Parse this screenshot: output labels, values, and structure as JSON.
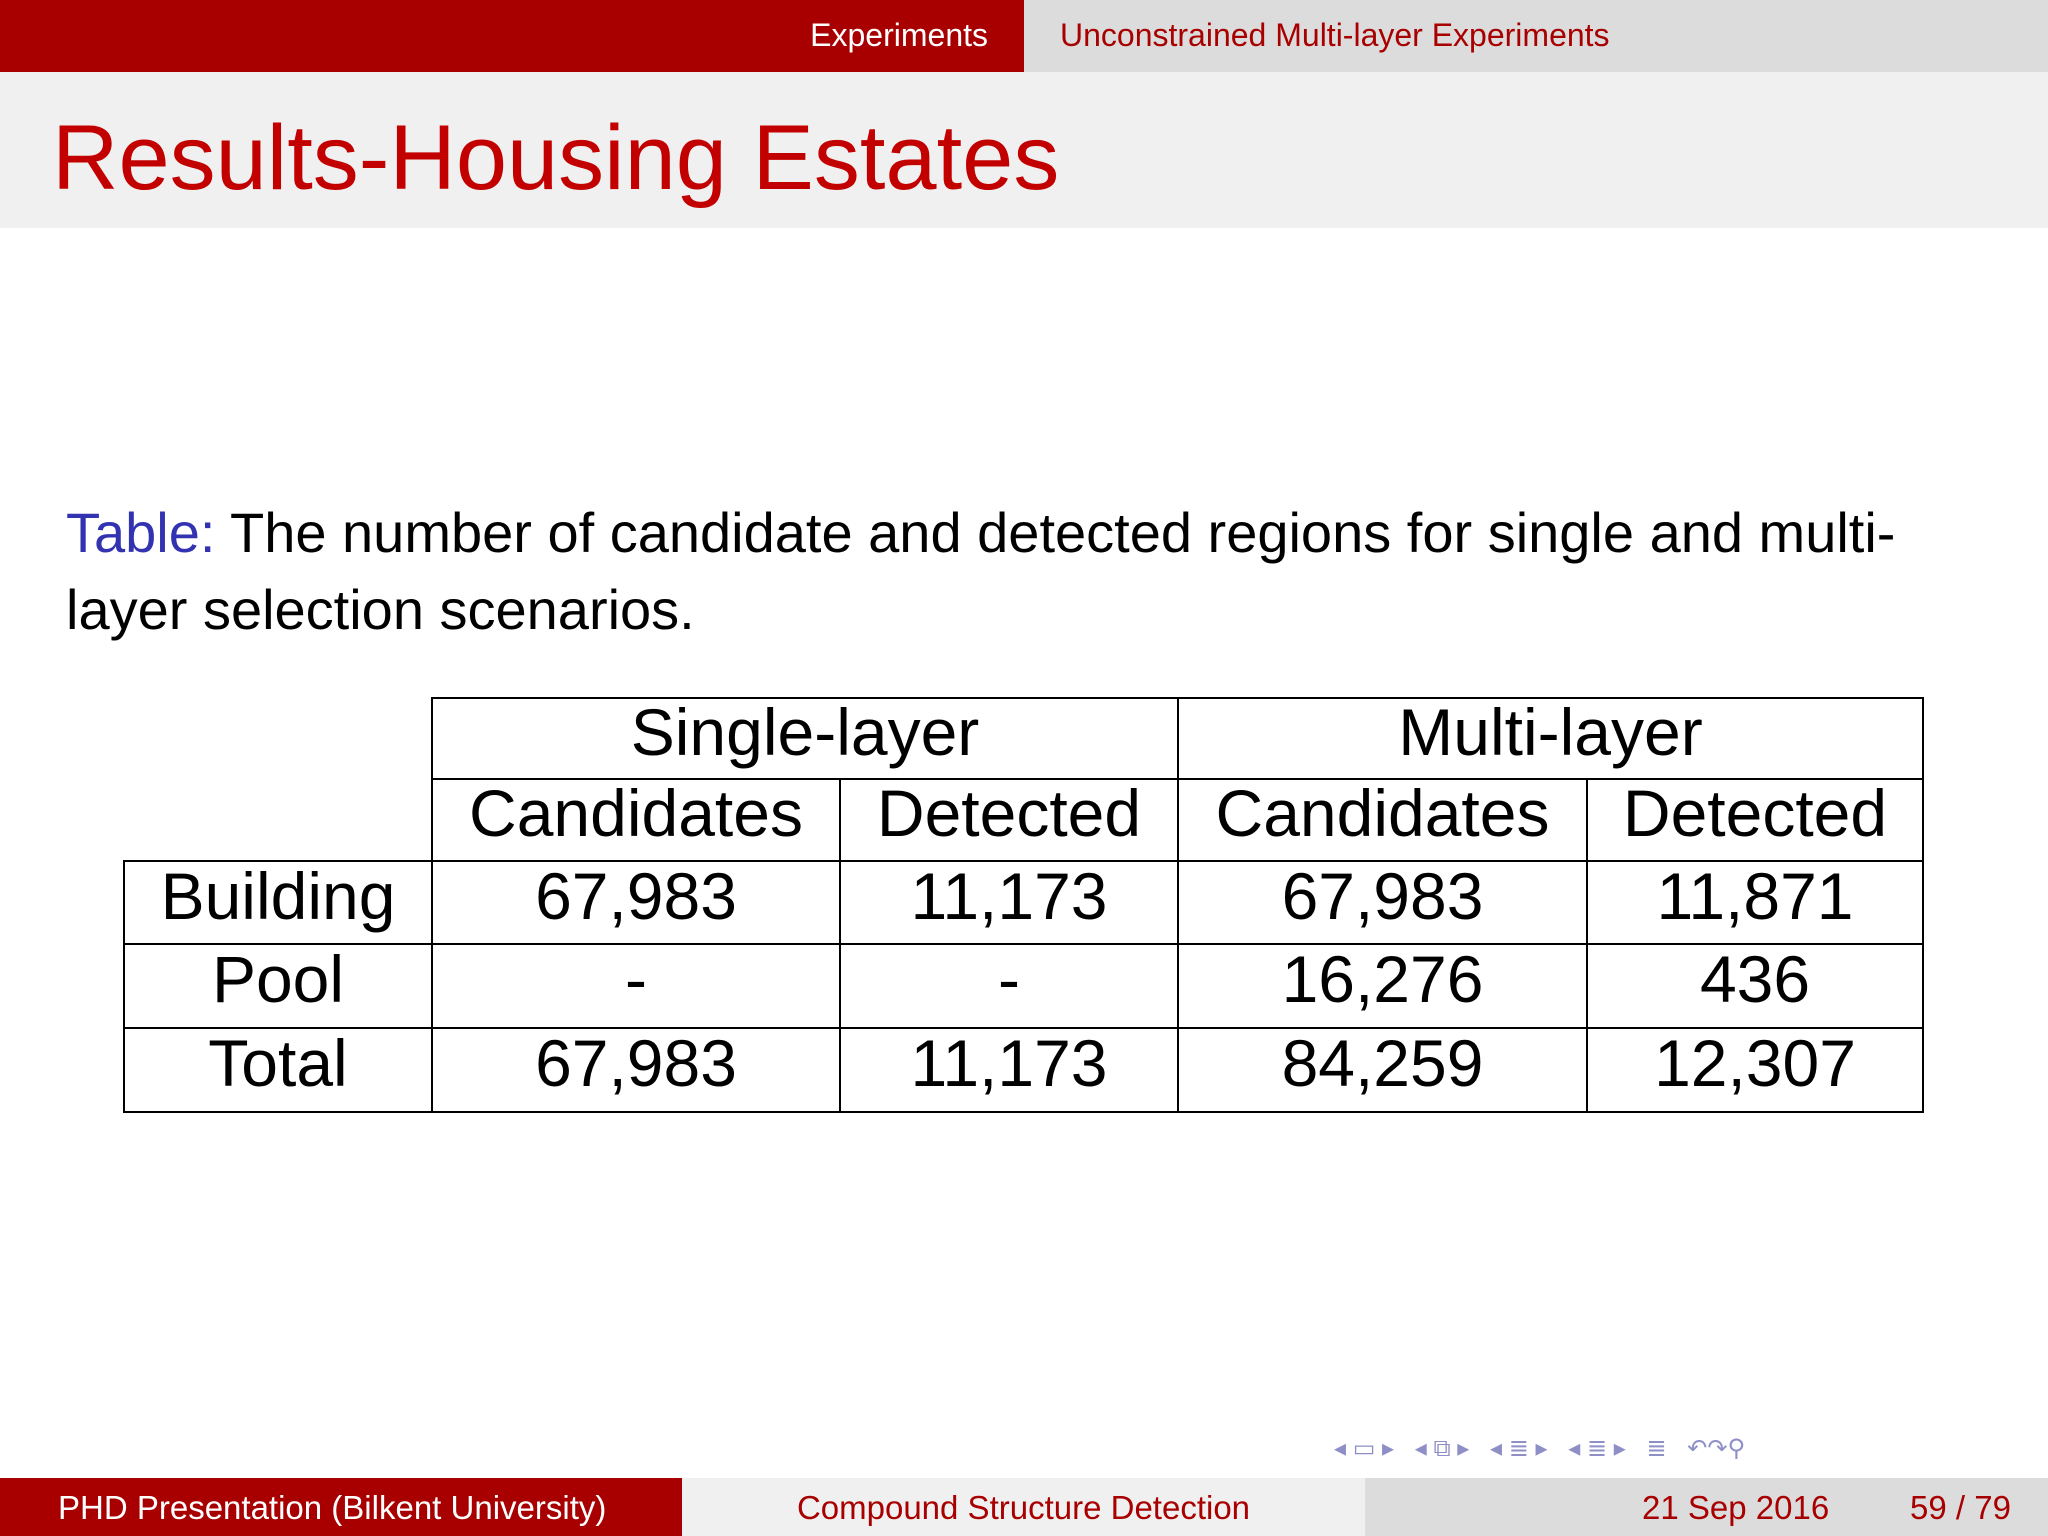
{
  "header": {
    "section": "Experiments",
    "subsection": "Unconstrained Multi-layer Experiments"
  },
  "slide": {
    "title": "Results-Housing Estates",
    "caption_label": "Table:",
    "caption_text": "The number of candidate and detected regions for single and multi-layer selection scenarios."
  },
  "table": {
    "group_headers": [
      "Single-layer",
      "Multi-layer"
    ],
    "column_headers": [
      "Candidates",
      "Detected",
      "Candidates",
      "Detected"
    ],
    "rows": [
      {
        "label": "Building",
        "values": [
          "67,983",
          "11,173",
          "67,983",
          "11,871"
        ]
      },
      {
        "label": "Pool",
        "values": [
          "-",
          "-",
          "16,276",
          "436"
        ]
      },
      {
        "label": "Total",
        "values": [
          "67,983",
          "11,173",
          "84,259",
          "12,307"
        ]
      }
    ]
  },
  "nav_icons": [
    "nav-prev-icon",
    "nav-frame-icon",
    "nav-next-icon",
    "nav-subsection-icon",
    "nav-section-icon",
    "nav-doc-icon",
    "nav-back-icon",
    "nav-search-icon"
  ],
  "footer": {
    "author": "PHD Presentation  (Bilkent University)",
    "short_title": "Compound Structure Detection",
    "date": "21 Sep 2016",
    "page": "59 / 79"
  },
  "colors": {
    "accent_red": "#a80000",
    "title_red": "#c20000",
    "caption_blue": "#3333b2",
    "light_gray": "#dcdcdc",
    "lighter_gray": "#f1f0f1"
  }
}
